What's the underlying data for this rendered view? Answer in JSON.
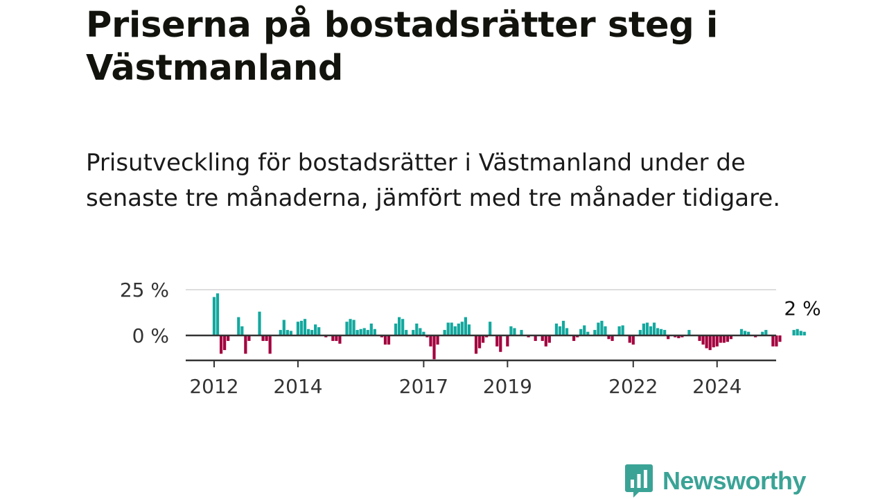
{
  "colors": {
    "positive": "#13a89e",
    "negative": "#a3003e",
    "grid": "#dddddd",
    "zero_line": "#333333",
    "axis": "#333333",
    "brand": "#3aa396"
  },
  "logo": {
    "text": "Newsworthy",
    "icon": "bar-chart-speech-bubble-icon"
  },
  "chart_data": {
    "type": "bar",
    "title": "Priserna på bostadsrätter steg i Västmanland",
    "subtitle": "Prisutveckling för bostadsrätter i Västmanland under de senaste tre månaderna, jämfört med tre månader tidigare.",
    "xlabel": "",
    "ylabel": "",
    "unit": "%",
    "ylim": [
      -14,
      27
    ],
    "y_ticks": [
      {
        "value": 25,
        "label": "25 %"
      },
      {
        "value": 0,
        "label": "0 %"
      }
    ],
    "x_ticks": [
      {
        "year": 2012,
        "label": "2012"
      },
      {
        "year": 2014,
        "label": "2014"
      },
      {
        "year": 2017,
        "label": "2017"
      },
      {
        "year": 2019,
        "label": "2019"
      },
      {
        "year": 2022,
        "label": "2022"
      },
      {
        "year": 2024,
        "label": "2024"
      }
    ],
    "start_month": "2012-01",
    "monthly_values": [
      21,
      23,
      -10,
      -8,
      -3,
      0,
      0,
      10,
      5,
      -10,
      -3,
      0,
      0,
      13,
      -3,
      -3,
      -10,
      0,
      0,
      3,
      8.5,
      3,
      2.5,
      0,
      7.5,
      8,
      9,
      3.5,
      3,
      6,
      4.5,
      0,
      -1,
      0,
      -3,
      -3,
      -4.5,
      0,
      7.5,
      9,
      8.5,
      3,
      3.5,
      4,
      3,
      6.5,
      3.5,
      0,
      -1,
      -5,
      -5,
      0,
      6.5,
      10,
      9,
      3,
      0,
      3,
      6.5,
      4,
      2,
      -1,
      -6,
      -13,
      -5,
      0,
      3,
      7,
      7,
      5,
      6.5,
      7.5,
      10,
      6,
      0,
      -10,
      -7,
      -4,
      -1,
      7.5,
      0,
      -6,
      -9,
      0,
      -6,
      5,
      4,
      0,
      3,
      0,
      -1,
      0,
      -3,
      0,
      -3,
      -6,
      -4,
      0,
      6.5,
      5,
      8,
      4,
      0,
      -3,
      -1,
      3.5,
      5.5,
      2,
      0,
      3,
      7,
      8,
      5,
      -2,
      -3,
      0,
      5,
      5.5,
      0,
      -4,
      -5,
      0,
      3,
      6.5,
      7,
      5,
      7,
      4,
      3.5,
      3,
      -2,
      0,
      -1,
      -1.5,
      -1,
      0,
      3,
      0,
      0,
      -3,
      -5,
      -7,
      -8,
      -6.5,
      -6,
      -4,
      -4,
      -3.5,
      -2,
      0,
      0,
      3.5,
      2.5,
      2,
      0,
      -1,
      0,
      2,
      3,
      0,
      -6,
      -6,
      -3.5,
      0,
      0,
      0,
      3,
      3.5,
      2.5,
      2
    ],
    "annotation": {
      "label": "2 %",
      "target": "last"
    }
  }
}
